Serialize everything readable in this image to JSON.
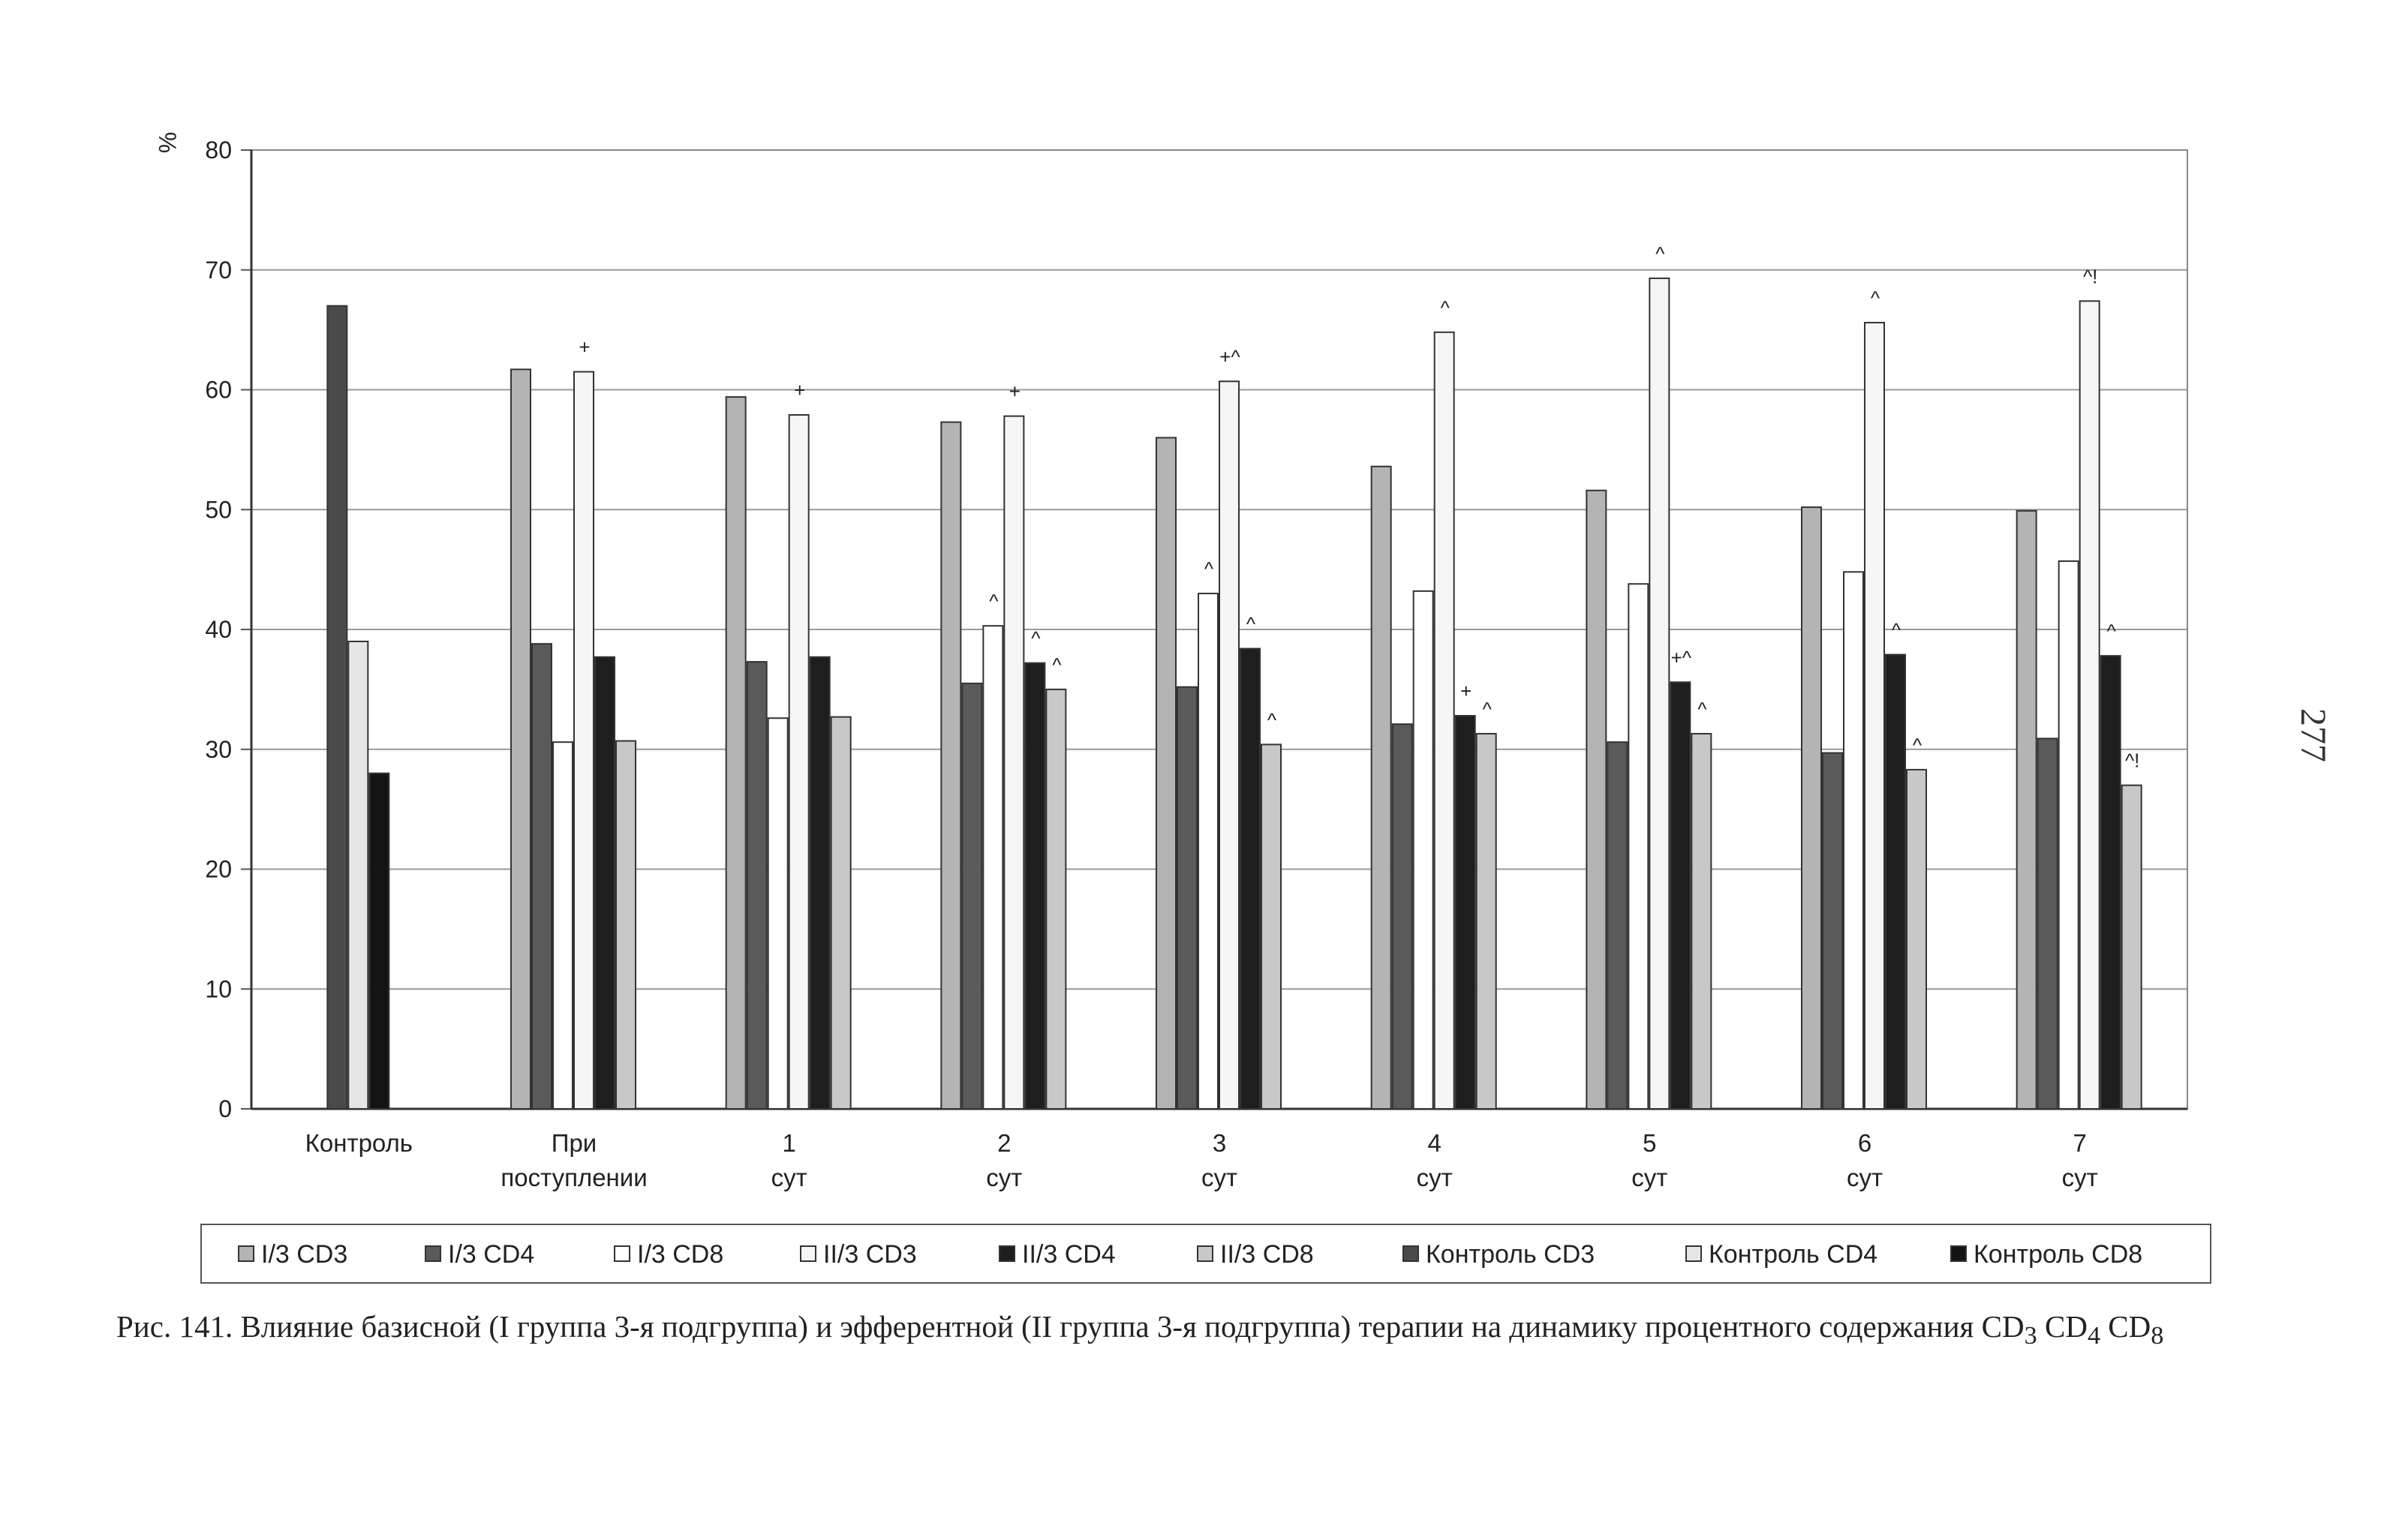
{
  "chart_data": {
    "type": "bar",
    "ylabel": "%",
    "ylim": [
      0,
      80
    ],
    "yticks": [
      0,
      10,
      20,
      30,
      40,
      50,
      60,
      70,
      80
    ],
    "grid": true,
    "legend_position": "bottom",
    "categories": [
      "Контроль",
      "При поступлении",
      "1 сут",
      "2 сут",
      "3 сут",
      "4 сут",
      "5 сут",
      "6 сут",
      "7 сут"
    ],
    "series": [
      {
        "name": "I/3 CD3",
        "color": "#b4b4b4",
        "values": [
          null,
          61.7,
          59.4,
          57.3,
          56.0,
          53.6,
          51.6,
          50.2,
          49.9
        ],
        "labels": [
          "",
          "",
          "",
          "",
          "",
          "",
          "",
          "",
          ""
        ]
      },
      {
        "name": "I/3 CD4",
        "color": "#5a5a5a",
        "values": [
          null,
          38.8,
          37.3,
          35.5,
          35.2,
          32.1,
          30.6,
          29.7,
          30.9
        ],
        "labels": [
          "",
          "",
          "",
          "",
          "",
          "",
          "",
          "",
          ""
        ]
      },
      {
        "name": "I/3 CD8",
        "color": "#ffffff",
        "values": [
          null,
          30.6,
          32.6,
          40.3,
          43.0,
          43.2,
          43.8,
          44.8,
          45.7
        ],
        "labels": [
          "",
          "",
          "",
          "^",
          "^",
          "",
          "",
          "",
          ""
        ]
      },
      {
        "name": "II/3 CD3",
        "color": "#f6f6f6",
        "values": [
          null,
          61.5,
          57.9,
          57.8,
          60.7,
          64.8,
          69.3,
          65.6,
          67.4
        ],
        "labels": [
          "",
          "+",
          "+",
          "+",
          "+^",
          "^",
          "^",
          "^",
          "^!"
        ]
      },
      {
        "name": "II/3 CD4",
        "color": "#1e1e1e",
        "values": [
          null,
          37.7,
          37.7,
          37.2,
          38.4,
          32.8,
          35.6,
          37.9,
          37.8
        ],
        "labels": [
          "",
          "",
          "",
          "^",
          "^",
          "+",
          "+^",
          "^",
          "^"
        ]
      },
      {
        "name": "II/3 CD8",
        "color": "#c8c8c8",
        "values": [
          null,
          30.7,
          32.7,
          35.0,
          30.4,
          31.3,
          31.3,
          28.3,
          27.0
        ],
        "labels": [
          "",
          "",
          "",
          "^",
          "^",
          "^",
          "^",
          "^",
          "^!"
        ]
      },
      {
        "name": "Контроль CD3",
        "color": "#4b4b4b",
        "values": [
          67.0,
          null,
          null,
          null,
          null,
          null,
          null,
          null,
          null
        ],
        "labels": [
          "",
          "",
          "",
          "",
          "",
          "",
          "",
          "",
          ""
        ]
      },
      {
        "name": "Контроль CD4",
        "color": "#e6e6e6",
        "values": [
          39.0,
          null,
          null,
          null,
          null,
          null,
          null,
          null,
          null
        ],
        "labels": [
          "",
          "",
          "",
          "",
          "",
          "",
          "",
          "",
          ""
        ]
      },
      {
        "name": "Контроль CD8",
        "color": "#141414",
        "values": [
          28.0,
          null,
          null,
          null,
          null,
          null,
          null,
          null,
          null
        ],
        "labels": [
          "",
          "",
          "",
          "",
          "",
          "",
          "",
          "",
          ""
        ]
      }
    ]
  },
  "caption": {
    "text": "Рис. 141. Влияние базисной (I группа 3-я подгруппа) и эфферентной (II группа 3-я подгруппа) терапии на динамику процентного содержания ",
    "cd3": "CD",
    "cd3_sub": "3",
    "cd4": "CD",
    "cd4_sub": "4",
    "cd8": "CD",
    "cd8_sub": "8"
  },
  "page_number": "277"
}
